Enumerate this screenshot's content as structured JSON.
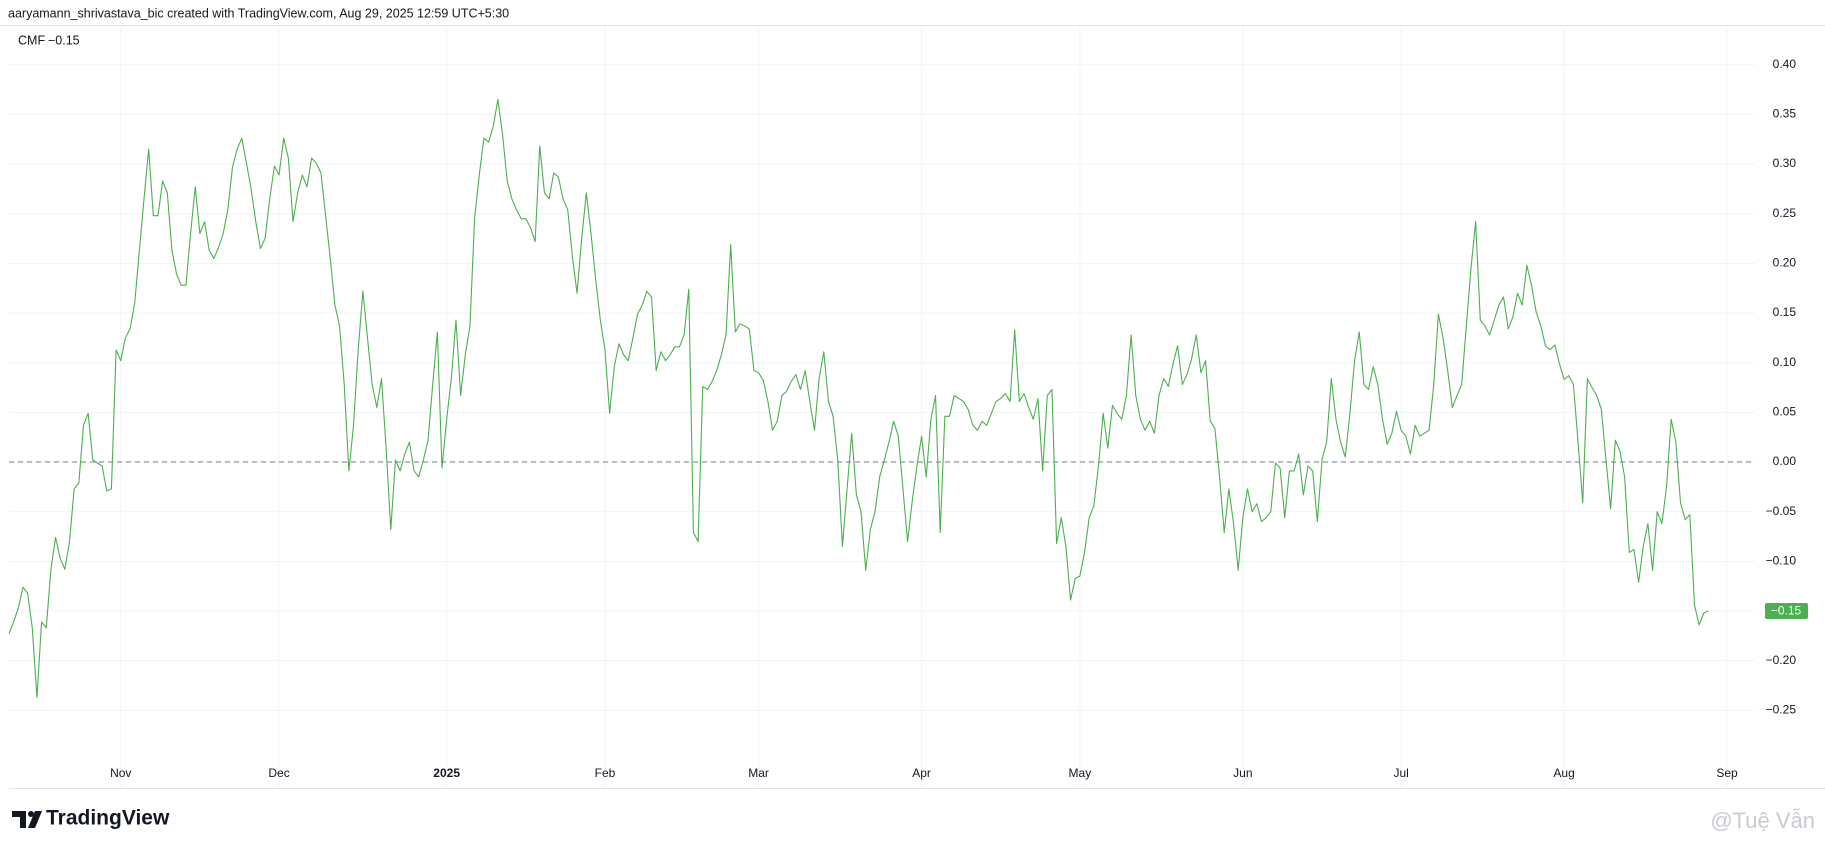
{
  "header": {
    "text": "aaryamann_shrivastava_bic created with TradingView.com, Aug 29, 2025 12:59 UTC+5:30"
  },
  "chart_data": {
    "type": "line",
    "series": [
      {
        "name": "CMF",
        "color": "#4caf50",
        "last_value_label": "−0.15",
        "values": [
          -0.173,
          -0.161,
          -0.147,
          -0.126,
          -0.132,
          -0.167,
          -0.237,
          -0.161,
          -0.167,
          -0.108,
          -0.076,
          -0.097,
          -0.108,
          -0.08,
          -0.027,
          -0.021,
          0.037,
          0.049,
          0.002,
          -0.001,
          -0.004,
          -0.029,
          -0.027,
          0.113,
          0.102,
          0.125,
          0.134,
          0.16,
          0.213,
          0.265,
          0.315,
          0.248,
          0.248,
          0.283,
          0.271,
          0.213,
          0.189,
          0.178,
          0.178,
          0.23,
          0.277,
          0.23,
          0.242,
          0.213,
          0.205,
          0.216,
          0.23,
          0.254,
          0.297,
          0.315,
          0.326,
          0.301,
          0.275,
          0.242,
          0.215,
          0.225,
          0.265,
          0.298,
          0.289,
          0.326,
          0.306,
          0.242,
          0.271,
          0.289,
          0.277,
          0.306,
          0.301,
          0.291,
          0.248,
          0.205,
          0.158,
          0.137,
          0.078,
          -0.009,
          0.037,
          0.113,
          0.172,
          0.125,
          0.078,
          0.055,
          0.084,
          0.014,
          -0.068,
          0.002,
          -0.009,
          0.008,
          0.02,
          -0.009,
          -0.015,
          0.002,
          0.022,
          0.078,
          0.131,
          -0.006,
          0.043,
          0.084,
          0.143,
          0.067,
          0.108,
          0.137,
          0.245,
          0.289,
          0.326,
          0.322,
          0.338,
          0.365,
          0.33,
          0.283,
          0.265,
          0.254,
          0.245,
          0.245,
          0.236,
          0.222,
          0.318,
          0.271,
          0.265,
          0.291,
          0.287,
          0.265,
          0.254,
          0.207,
          0.17,
          0.225,
          0.271,
          0.23,
          0.184,
          0.143,
          0.113,
          0.049,
          0.096,
          0.119,
          0.108,
          0.102,
          0.125,
          0.149,
          0.158,
          0.172,
          0.166,
          0.092,
          0.111,
          0.102,
          0.108,
          0.116,
          0.116,
          0.128,
          0.174,
          -0.071,
          -0.08,
          0.076,
          0.073,
          0.081,
          0.092,
          0.108,
          0.128,
          0.219,
          0.131,
          0.139,
          0.137,
          0.134,
          0.092,
          0.09,
          0.082,
          0.061,
          0.032,
          0.041,
          0.067,
          0.071,
          0.081,
          0.088,
          0.073,
          0.092,
          0.061,
          0.032,
          0.084,
          0.111,
          0.061,
          0.046,
          0.002,
          -0.085,
          -0.027,
          0.029,
          -0.033,
          -0.05,
          -0.109,
          -0.068,
          -0.05,
          -0.015,
          0.002,
          0.02,
          0.041,
          0.026,
          -0.027,
          -0.08,
          -0.039,
          -0.004,
          0.026,
          -0.015,
          0.043,
          0.067,
          -0.071,
          0.046,
          0.046,
          0.067,
          0.064,
          0.061,
          0.053,
          0.037,
          0.032,
          0.041,
          0.037,
          0.049,
          0.061,
          0.064,
          0.069,
          0.061,
          0.133,
          0.061,
          0.069,
          0.055,
          0.043,
          0.064,
          -0.009,
          0.067,
          0.073,
          -0.082,
          -0.056,
          -0.085,
          -0.139,
          -0.117,
          -0.115,
          -0.091,
          -0.056,
          -0.044,
          -0.004,
          0.049,
          0.014,
          0.057,
          0.049,
          0.043,
          0.067,
          0.128,
          0.067,
          0.043,
          0.032,
          0.041,
          0.029,
          0.067,
          0.084,
          0.076,
          0.099,
          0.117,
          0.078,
          0.088,
          0.104,
          0.128,
          0.09,
          0.102,
          0.041,
          0.034,
          -0.015,
          -0.071,
          -0.027,
          -0.062,
          -0.109,
          -0.056,
          -0.027,
          -0.05,
          -0.042,
          -0.06,
          -0.056,
          -0.05,
          -0.001,
          -0.006,
          -0.056,
          -0.009,
          -0.009,
          0.008,
          -0.033,
          -0.004,
          -0.009,
          -0.06,
          0.002,
          0.02,
          0.084,
          0.043,
          0.02,
          0.005,
          0.049,
          0.102,
          0.131,
          0.078,
          0.073,
          0.096,
          0.078,
          0.043,
          0.018,
          0.029,
          0.051,
          0.032,
          0.026,
          0.008,
          0.037,
          0.026,
          0.029,
          0.032,
          0.078,
          0.149,
          0.125,
          0.092,
          0.055,
          0.067,
          0.078,
          0.137,
          0.195,
          0.242,
          0.143,
          0.137,
          0.128,
          0.143,
          0.158,
          0.166,
          0.134,
          0.146,
          0.17,
          0.158,
          0.198,
          0.178,
          0.151,
          0.137,
          0.117,
          0.113,
          0.118,
          0.099,
          0.083,
          0.087,
          0.078,
          0.02,
          -0.041,
          0.084,
          0.075,
          0.067,
          0.053,
          0.002,
          -0.047,
          0.022,
          0.011,
          -0.015,
          -0.091,
          -0.088,
          -0.121,
          -0.085,
          -0.062,
          -0.109,
          -0.05,
          -0.062,
          -0.025,
          0.043,
          0.02,
          -0.041,
          -0.058,
          -0.053,
          -0.144,
          -0.164,
          -0.152,
          -0.15
        ]
      }
    ],
    "xlim": [
      0,
      375
    ],
    "xticks": [
      {
        "value": 24,
        "label": "Nov"
      },
      {
        "value": 58,
        "label": "Dec"
      },
      {
        "value": 94,
        "label": "2025"
      },
      {
        "value": 128,
        "label": "Feb"
      },
      {
        "value": 161,
        "label": "Mar"
      },
      {
        "value": 196,
        "label": "Apr"
      },
      {
        "value": 230,
        "label": "May"
      },
      {
        "value": 265,
        "label": "Jun"
      },
      {
        "value": 299,
        "label": "Jul"
      },
      {
        "value": 334,
        "label": "Aug"
      },
      {
        "value": 369,
        "label": "Sep"
      }
    ],
    "ylim": [
      -0.3,
      0.44
    ],
    "yticks": [
      {
        "value": 0.4,
        "label": "0.40"
      },
      {
        "value": 0.35,
        "label": "0.35"
      },
      {
        "value": 0.3,
        "label": "0.30"
      },
      {
        "value": 0.25,
        "label": "0.25"
      },
      {
        "value": 0.2,
        "label": "0.20"
      },
      {
        "value": 0.15,
        "label": "0.15"
      },
      {
        "value": 0.1,
        "label": "0.10"
      },
      {
        "value": 0.05,
        "label": "0.05"
      },
      {
        "value": 0,
        "label": "0.00"
      },
      {
        "value": -0.05,
        "label": "−0.05"
      },
      {
        "value": -0.1,
        "label": "−0.10"
      },
      {
        "value": -0.15,
        "label": "−0.15"
      },
      {
        "value": -0.2,
        "label": "−0.20"
      },
      {
        "value": -0.25,
        "label": "−0.25"
      }
    ],
    "grid": true,
    "reference_line": 0
  },
  "footer": {
    "logo": "TradingView",
    "watermark": "@Tuệ Vẫn"
  }
}
